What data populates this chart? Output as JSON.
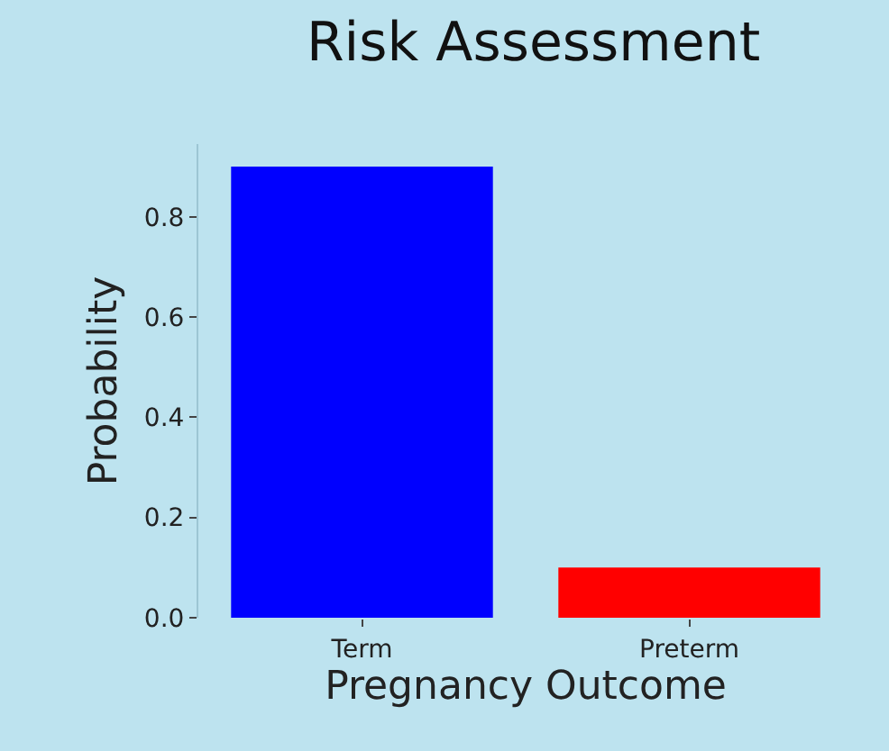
{
  "chart_data": {
    "type": "bar",
    "title": "Risk Assessment",
    "xlabel": "Pregnancy Outcome",
    "ylabel": "Probability",
    "categories": [
      "Term",
      "Preterm"
    ],
    "values": [
      0.9,
      0.1
    ],
    "colors": [
      "#0000ff",
      "#ff0000"
    ],
    "ylim": [
      0,
      0.945
    ],
    "yticks": [
      {
        "value": 0,
        "label": "0.0"
      },
      {
        "value": 0.2,
        "label": "0.2"
      },
      {
        "value": 0.4,
        "label": "0.4"
      },
      {
        "value": 0.6,
        "label": "0.6"
      },
      {
        "value": 0.8,
        "label": "0.8"
      }
    ],
    "grid": false
  }
}
